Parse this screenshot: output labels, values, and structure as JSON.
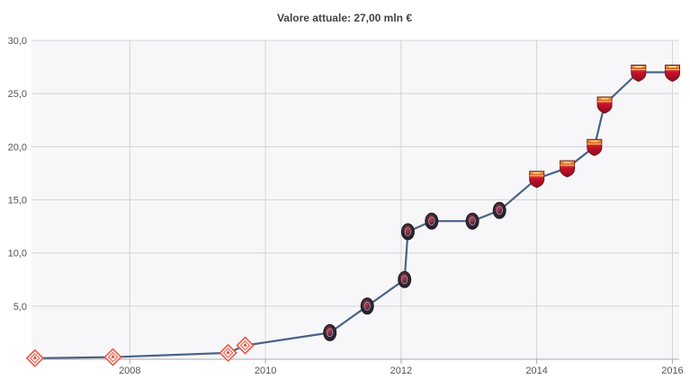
{
  "chart_data": {
    "type": "line",
    "title": "Valore attuale: 27,00 mln €",
    "xlabel": "",
    "ylabel": "",
    "xlim": [
      2006.55,
      2016.1
    ],
    "ylim": [
      0,
      30
    ],
    "x_ticks": [
      {
        "value": 2008,
        "label": "2008"
      },
      {
        "value": 2010,
        "label": "2010"
      },
      {
        "value": 2012,
        "label": "2012"
      },
      {
        "value": 2014,
        "label": "2014"
      },
      {
        "value": 2016,
        "label": "2016"
      }
    ],
    "y_ticks": [
      {
        "value": 5,
        "label": "5,0"
      },
      {
        "value": 10,
        "label": "10,0"
      },
      {
        "value": 15,
        "label": "15,0"
      },
      {
        "value": 20,
        "label": "20,0"
      },
      {
        "value": 25,
        "label": "25,0"
      },
      {
        "value": 30,
        "label": "30,0"
      }
    ],
    "grid": true,
    "legend": "none",
    "series": [
      {
        "color": "#4a6285",
        "x": [
          2006.6,
          2007.75,
          2009.45,
          2009.7,
          2010.95,
          2011.5,
          2012.05,
          2012.1,
          2012.45,
          2013.05,
          2013.45,
          2014.0,
          2014.45,
          2014.85,
          2015.0,
          2015.5,
          2016.0
        ],
        "y": [
          0.1,
          0.2,
          0.6,
          1.3,
          2.5,
          5.0,
          7.5,
          12.0,
          13.0,
          13.0,
          14.0,
          17.0,
          18.0,
          20.0,
          24.0,
          27.0,
          27.0
        ],
        "markers": [
          "fiorentina-crest-icon",
          "fiorentina-crest-icon",
          "fiorentina-crest-icon",
          "fiorentina-crest-icon",
          "cagliari-crest-icon",
          "cagliari-crest-icon",
          "cagliari-crest-icon",
          "cagliari-crest-icon",
          "cagliari-crest-icon",
          "cagliari-crest-icon",
          "cagliari-crest-icon",
          "roma-crest-icon",
          "roma-crest-icon",
          "roma-crest-icon",
          "roma-crest-icon",
          "roma-crest-icon",
          "roma-crest-icon"
        ]
      }
    ]
  }
}
